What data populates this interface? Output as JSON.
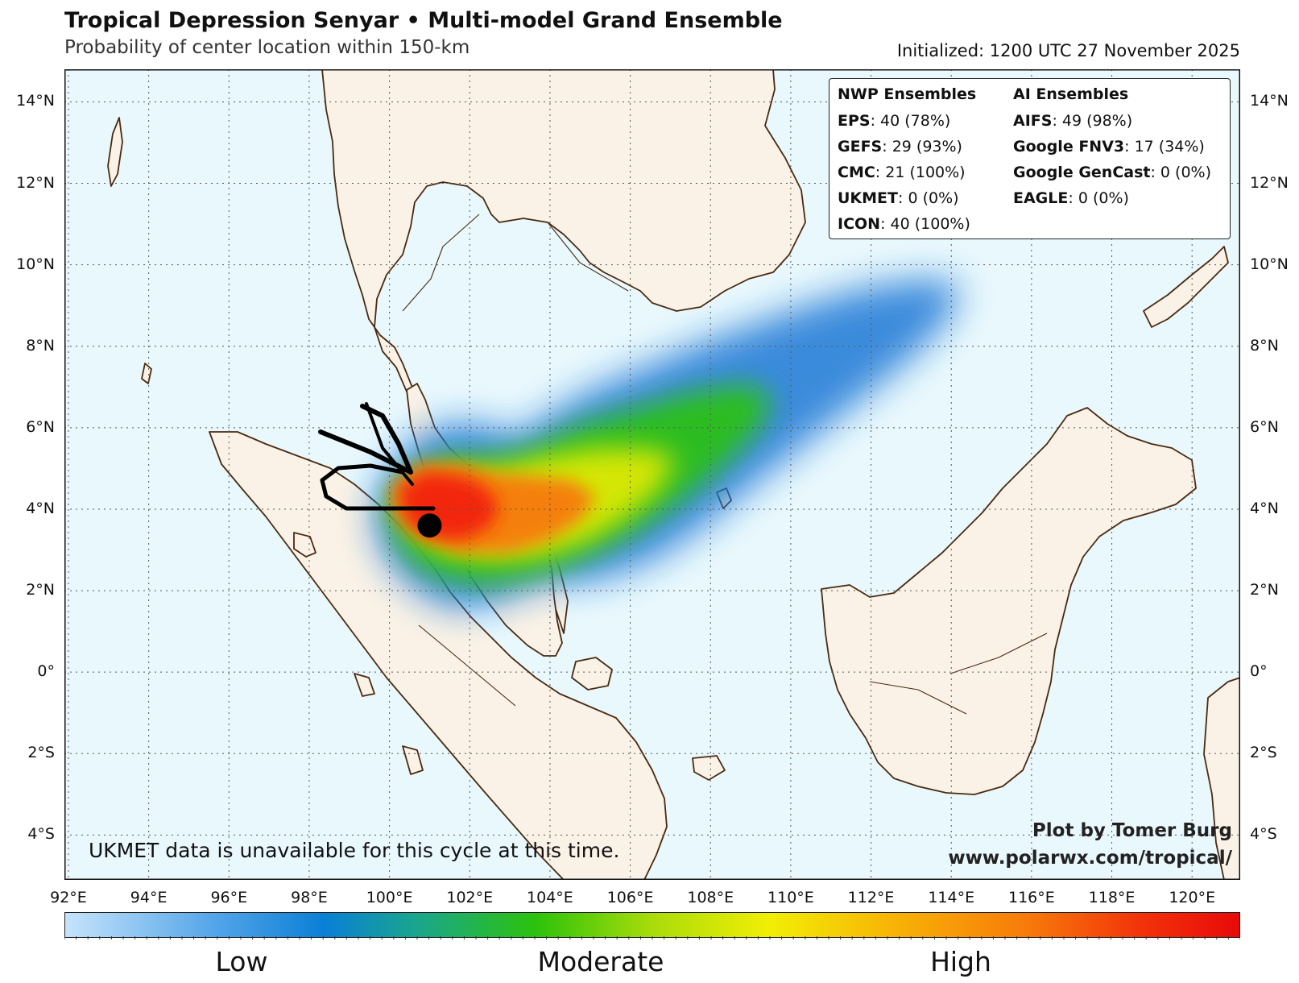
{
  "header": {
    "title": "Tropical Depression Senyar • Multi-model Grand Ensemble",
    "subtitle": "Probability of center location within 150-km",
    "initialized": "Initialized: 1200 UTC 27 November 2025"
  },
  "map": {
    "lon_range": [
      91.9,
      121.2
    ],
    "lat_range": [
      -5.1,
      14.8
    ],
    "lat_labels": [
      "14°N",
      "12°N",
      "10°N",
      "8°N",
      "6°N",
      "4°N",
      "2°N",
      "0°",
      "2°S",
      "4°S"
    ],
    "lon_labels": [
      "92°E",
      "94°E",
      "96°E",
      "98°E",
      "100°E",
      "102°E",
      "104°E",
      "106°E",
      "108°E",
      "110°E",
      "112°E",
      "114°E",
      "116°E",
      "118°E",
      "120°E"
    ],
    "gridlines": "dotted",
    "ocean_color": "#e9f8fd",
    "land_color": "#faf2e6",
    "coast_color": "#4a2a10",
    "storm_center": {
      "lon": 101.0,
      "lat": 3.6
    }
  },
  "ensembles": {
    "nwp_header": "NWP Ensembles",
    "nwp": [
      {
        "name": "EPS",
        "value": ": 40 (78%)"
      },
      {
        "name": "GEFS",
        "value": ": 29 (93%)"
      },
      {
        "name": "CMC",
        "value": ": 21 (100%)"
      },
      {
        "name": "UKMET",
        "value": ": 0 (0%)"
      },
      {
        "name": "ICON",
        "value": ": 40 (100%)"
      }
    ],
    "ai_header": "AI Ensembles",
    "ai": [
      {
        "name": "AIFS",
        "value": ": 49 (98%)"
      },
      {
        "name": "Google FNV3",
        "value": ": 17 (34%)"
      },
      {
        "name": "Google GenCast",
        "value": ": 0 (0%)"
      },
      {
        "name": "EAGLE",
        "value": ": 0 (0%)"
      }
    ]
  },
  "notes": {
    "ukmet": "UKMET data is unavailable for this cycle at this time.",
    "credit_line1": "Plot by Tomer Burg",
    "credit_line2": "www.polarwx.com/tropical/"
  },
  "colorbar": {
    "labels": [
      "Low",
      "Moderate",
      "High"
    ]
  }
}
